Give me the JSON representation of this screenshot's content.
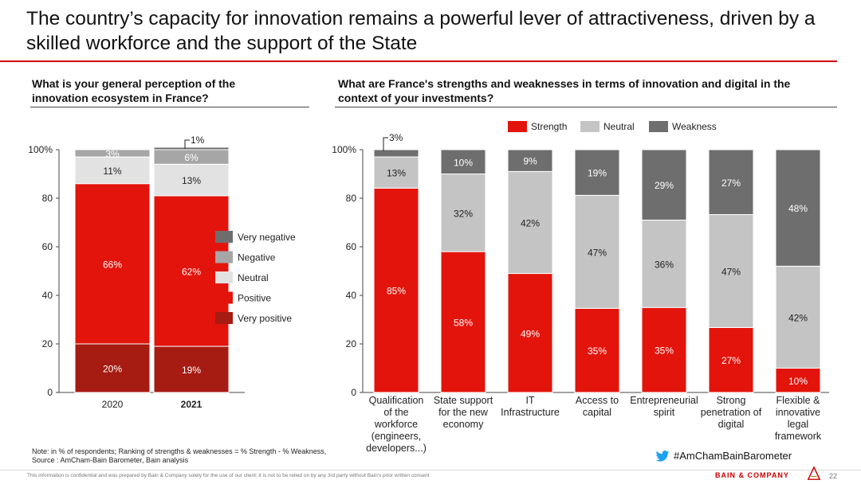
{
  "title": "The country’s capacity for innovation remains a powerful lever of attractiveness, driven by a skilled workforce and the support of the State",
  "left_question": "What is your general perception of the innovation ecosystem in France?",
  "right_question": "What are France's strengths and weaknesses in terms of innovation and digital in the context of your investments?",
  "note_line1": "Note: in % of respondents; Ranking of strengths & weaknesses = % Strength - % Weakness,",
  "note_line2": "Source : AmCham-Bain Barometer, Bain analysis",
  "hashtag": "#AmChamBainBarometer",
  "footer": "This information is confidential and was prepared by Bain & Company solely for the use of our client; it is not to be relied on by any 3rd party without Bain's prior written consent",
  "brand": "BAIN & COMPANY",
  "page_number": "22",
  "icons": {
    "hashtag": "twitter-bird-icon",
    "brand_mark": "bain-logo-icon"
  },
  "colors": {
    "very_positive": "#a61b12",
    "positive": "#e3140c",
    "neutral": "#e2e2e2",
    "negative": "#a6a6a6",
    "very_negative": "#6e6e6e",
    "strength": "#e3140c",
    "neutral_right": "#c4c4c4",
    "weakness": "#6e6e6e",
    "accent": "#cc0000"
  },
  "chart_data": [
    {
      "type": "bar",
      "stacked": true,
      "categories": [
        "2020",
        "2021"
      ],
      "ylim": [
        0,
        100
      ],
      "yticks": [
        "0",
        "20",
        "40",
        "60",
        "80",
        "100%"
      ],
      "series": [
        {
          "name": "Very positive",
          "values": [
            20,
            19
          ],
          "labels": [
            "20%",
            "19%"
          ]
        },
        {
          "name": "Positive",
          "values": [
            66,
            62
          ],
          "labels": [
            "66%",
            "62%"
          ]
        },
        {
          "name": "Neutral",
          "values": [
            11,
            13
          ],
          "labels": [
            "11%",
            "13%"
          ]
        },
        {
          "name": "Negative",
          "values": [
            3,
            6
          ],
          "labels": [
            "3%",
            "6%"
          ]
        },
        {
          "name": "Very negative",
          "values": [
            0,
            1
          ],
          "labels": [
            "",
            "1%"
          ]
        }
      ],
      "legend_order": [
        "Very negative",
        "Negative",
        "Neutral",
        "Positive",
        "Very positive"
      ],
      "legend_placement": "right"
    },
    {
      "type": "bar",
      "stacked": true,
      "categories": [
        "Qualification of the workforce (engineers, developers...)",
        "State support for the new economy",
        "IT Infrastructure",
        "Access to capital",
        "Entrepreneurial spirit",
        "Strong penetration of digital",
        "Flexible & innovative legal framework"
      ],
      "category_lines": [
        [
          "Qualification",
          "of the",
          "workforce",
          "(engineers,",
          "developers...)"
        ],
        [
          "State support",
          "for the new",
          "economy"
        ],
        [
          "IT",
          "Infrastructure"
        ],
        [
          "Access to",
          "capital"
        ],
        [
          "Entrepreneurial",
          "spirit"
        ],
        [
          "Strong",
          "penetration of",
          "digital"
        ],
        [
          "Flexible &",
          "innovative",
          "legal",
          "framework"
        ]
      ],
      "ylim": [
        0,
        100
      ],
      "yticks": [
        "0",
        "20",
        "40",
        "60",
        "80",
        "100%"
      ],
      "series": [
        {
          "name": "Strength",
          "values": [
            85,
            58,
            49,
            35,
            35,
            27,
            10
          ],
          "labels": [
            "85%",
            "58%",
            "49%",
            "35%",
            "35%",
            "27%",
            "10%"
          ]
        },
        {
          "name": "Neutral",
          "values": [
            13,
            32,
            42,
            47,
            36,
            47,
            42
          ],
          "labels": [
            "13%",
            "32%",
            "42%",
            "47%",
            "36%",
            "47%",
            "42%"
          ]
        },
        {
          "name": "Weakness",
          "values": [
            3,
            10,
            9,
            19,
            29,
            27,
            48
          ],
          "labels": [
            "3%",
            "10%",
            "9%",
            "19%",
            "29%",
            "27%",
            "48%"
          ]
        }
      ],
      "legend_placement": "top"
    }
  ]
}
